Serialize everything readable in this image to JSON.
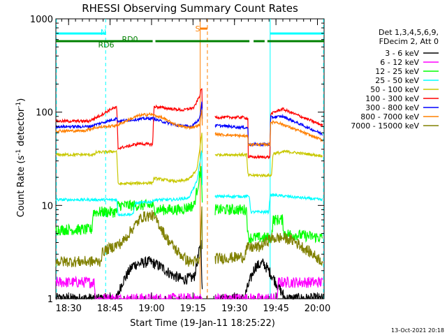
{
  "chart_data": {
    "type": "line",
    "title": "RHESSI Observing Summary Count Rates",
    "xlabel": "Start Time (19-Jan-11 18:25:22)",
    "ylabel_main": "Count Rate (s",
    "ylabel_exp1": "-1",
    "ylabel_mid": " detector",
    "ylabel_exp2": "-1",
    "ylabel_end": ")",
    "y_scale": "log",
    "ylim": [
      1,
      1000
    ],
    "xlim_minutes": [
      0,
      97
    ],
    "x_ticks": [
      {
        "value": 4.6,
        "label": "18:30"
      },
      {
        "value": 19.6,
        "label": "18:45"
      },
      {
        "value": 34.6,
        "label": "19:00"
      },
      {
        "value": 49.6,
        "label": "19:15"
      },
      {
        "value": 64.6,
        "label": "19:30"
      },
      {
        "value": 79.6,
        "label": "19:45"
      },
      {
        "value": 94.6,
        "label": "20:00"
      }
    ],
    "y_ticks": [
      {
        "value": 1,
        "label": "1"
      },
      {
        "value": 10,
        "label": "10"
      },
      {
        "value": 100,
        "label": "100"
      },
      {
        "value": 1000,
        "label": "1000"
      }
    ],
    "legend_header": [
      "Det 1,3,4,5,6,9,",
      "FDecim 2, Att 0"
    ],
    "legend_position": "right",
    "timestamp": "13-Oct-2021 20:18",
    "flags": [
      {
        "label": "N",
        "color": "#00ffff",
        "segments": [
          [
            0,
            18
          ],
          [
            77.5,
            97
          ]
        ]
      },
      {
        "label": "S",
        "color": "#ff8000",
        "segments": [
          [
            52.2,
            54.8
          ]
        ]
      },
      {
        "label": "RD0",
        "color": "#008000",
        "segments": [
          [
            0,
            35
          ],
          [
            36,
            70
          ],
          [
            71.5,
            75.5
          ],
          [
            76.5,
            97
          ]
        ]
      },
      {
        "label": "RD6",
        "color": "#008000",
        "segments": []
      }
    ],
    "vertical_lines": [
      {
        "x": 0.2,
        "color": "#00ffff",
        "style": "dashed"
      },
      {
        "x": 18,
        "color": "#00ffff",
        "style": "dashed"
      },
      {
        "x": 52.2,
        "color": "#ff8000",
        "style": "solid"
      },
      {
        "x": 54.8,
        "color": "#ff8000",
        "style": "dashed"
      },
      {
        "x": 77.5,
        "color": "#00ffff",
        "style": "solid"
      },
      {
        "x": 96.8,
        "color": "#00ffff",
        "style": "dashed"
      }
    ],
    "gap_minutes": [
      53,
      57.5
    ],
    "series": [
      {
        "name": "3 - 6 keV",
        "color": "#000000",
        "points": [
          [
            0,
            1
          ],
          [
            22,
            1
          ],
          [
            24,
            1.5
          ],
          [
            28,
            2.3
          ],
          [
            34,
            2.5
          ],
          [
            38,
            2.2
          ],
          [
            42,
            1.8
          ],
          [
            46,
            1.6
          ],
          [
            50,
            1.7
          ],
          [
            52.5,
            4
          ],
          [
            53,
            1
          ],
          [
            57.5,
            1
          ],
          [
            68,
            1
          ],
          [
            70,
            1.5
          ],
          [
            72,
            2.2
          ],
          [
            75,
            2.4
          ],
          [
            77,
            2.0
          ],
          [
            79,
            1.6
          ],
          [
            83,
            1
          ],
          [
            97,
            1
          ]
        ]
      },
      {
        "name": "6 - 12 keV",
        "color": "#ff00ff",
        "points": [
          [
            0,
            1.5
          ],
          [
            14,
            1.5
          ],
          [
            14.2,
            1
          ],
          [
            52.5,
            1
          ],
          [
            53,
            1
          ],
          [
            57.5,
            1
          ],
          [
            80,
            1
          ],
          [
            80.5,
            1.5
          ],
          [
            96.5,
            1.5
          ]
        ]
      },
      {
        "name": "12 - 25 keV",
        "color": "#00ff00",
        "points": [
          [
            0,
            5.5
          ],
          [
            13,
            5.5
          ],
          [
            13.5,
            8.5
          ],
          [
            22,
            8.5
          ],
          [
            22.5,
            10
          ],
          [
            35,
            10
          ],
          [
            35.5,
            9
          ],
          [
            45,
            9
          ],
          [
            50,
            10
          ],
          [
            52.5,
            25
          ],
          [
            53,
            9
          ],
          [
            57.5,
            9
          ],
          [
            69,
            9
          ],
          [
            69.5,
            4.5
          ],
          [
            78,
            4.5
          ],
          [
            78.5,
            7
          ],
          [
            82,
            7
          ],
          [
            82.5,
            5
          ],
          [
            96.5,
            4.5
          ]
        ]
      },
      {
        "name": "25 - 50 keV",
        "color": "#00ffff",
        "points": [
          [
            0,
            11.5
          ],
          [
            22,
            11.5
          ],
          [
            22.5,
            8
          ],
          [
            28,
            8
          ],
          [
            28.5,
            10.5
          ],
          [
            35,
            11
          ],
          [
            35.5,
            11.5
          ],
          [
            42,
            11.5
          ],
          [
            48,
            12
          ],
          [
            51,
            18
          ],
          [
            52.8,
            40
          ],
          [
            53,
            12
          ],
          [
            57.5,
            12.5
          ],
          [
            70,
            12.5
          ],
          [
            70.5,
            8.5
          ],
          [
            77,
            8.5
          ],
          [
            77.5,
            13
          ],
          [
            96.5,
            11.5
          ]
        ]
      },
      {
        "name": "50 - 100 keV",
        "color": "#c8c800",
        "points": [
          [
            0,
            35
          ],
          [
            14,
            35
          ],
          [
            14.5,
            37
          ],
          [
            22,
            38
          ],
          [
            22.5,
            17
          ],
          [
            35,
            17.5
          ],
          [
            35.5,
            19.5
          ],
          [
            44,
            18
          ],
          [
            48,
            19
          ],
          [
            51,
            24
          ],
          [
            52.8,
            60
          ],
          [
            53,
            31
          ],
          [
            57.5,
            35
          ],
          [
            69,
            35
          ],
          [
            69.5,
            21
          ],
          [
            78,
            21
          ],
          [
            78.5,
            36
          ],
          [
            82,
            37
          ],
          [
            82.5,
            38
          ],
          [
            96.5,
            34
          ]
        ]
      },
      {
        "name": "100 - 300 keV",
        "color": "#ff0000",
        "points": [
          [
            0,
            80
          ],
          [
            12,
            80
          ],
          [
            16,
            92
          ],
          [
            20,
            108
          ],
          [
            22,
            112
          ],
          [
            22.5,
            41
          ],
          [
            26,
            43
          ],
          [
            30,
            46
          ],
          [
            35,
            45
          ],
          [
            35.5,
            115
          ],
          [
            40,
            110
          ],
          [
            46,
            105
          ],
          [
            50,
            112
          ],
          [
            52,
            150
          ],
          [
            52.8,
            185
          ],
          [
            53,
            90
          ],
          [
            57.5,
            88
          ],
          [
            68,
            88
          ],
          [
            69.5,
            85
          ],
          [
            69.6,
            33
          ],
          [
            77.5,
            33
          ],
          [
            77.6,
            95
          ],
          [
            80,
            103
          ],
          [
            82,
            108
          ],
          [
            96.5,
            72
          ]
        ]
      },
      {
        "name": "300 - 800 keV",
        "color": "#0000ff",
        "points": [
          [
            0,
            70
          ],
          [
            12,
            70
          ],
          [
            16,
            76
          ],
          [
            20,
            82
          ],
          [
            22,
            86
          ],
          [
            22.5,
            80
          ],
          [
            28,
            83
          ],
          [
            32,
            85
          ],
          [
            35,
            86
          ],
          [
            38,
            80
          ],
          [
            44,
            72
          ],
          [
            49,
            70
          ],
          [
            52,
            85
          ],
          [
            52.8,
            130
          ],
          [
            53,
            75
          ],
          [
            57.5,
            72
          ],
          [
            69.5,
            68
          ],
          [
            69.6,
            45
          ],
          [
            77.5,
            45
          ],
          [
            77.6,
            88
          ],
          [
            82,
            90
          ],
          [
            96.5,
            58
          ]
        ]
      },
      {
        "name": "800 - 7000 keV",
        "color": "#ff8000",
        "points": [
          [
            0,
            63
          ],
          [
            10,
            63
          ],
          [
            14,
            68
          ],
          [
            18,
            70
          ],
          [
            22,
            72
          ],
          [
            26,
            82
          ],
          [
            30,
            92
          ],
          [
            34,
            95
          ],
          [
            38,
            88
          ],
          [
            44,
            72
          ],
          [
            48,
            68
          ],
          [
            52,
            72
          ],
          [
            52.8,
            110
          ],
          [
            53,
            60
          ],
          [
            57.5,
            58
          ],
          [
            69.5,
            55
          ],
          [
            69.6,
            45
          ],
          [
            77.5,
            45
          ],
          [
            77.6,
            78
          ],
          [
            80,
            78
          ],
          [
            96.5,
            50
          ]
        ]
      },
      {
        "name": "7000 - 15000 keV",
        "color": "#808000",
        "points": [
          [
            0,
            2.5
          ],
          [
            16,
            2.5
          ],
          [
            17,
            3.2
          ],
          [
            24,
            4.0
          ],
          [
            28,
            5.8
          ],
          [
            31,
            7.5
          ],
          [
            35,
            7.8
          ],
          [
            37,
            6.5
          ],
          [
            40,
            4.5
          ],
          [
            44,
            3.2
          ],
          [
            48,
            2.5
          ],
          [
            52,
            2.5
          ],
          [
            52.8,
            9
          ],
          [
            53,
            2.6
          ],
          [
            57.5,
            2.7
          ],
          [
            68,
            2.8
          ],
          [
            69,
            3.5
          ],
          [
            74,
            3.6
          ],
          [
            77.5,
            4.4
          ],
          [
            82,
            4.5
          ],
          [
            86,
            4.2
          ],
          [
            96.5,
            2.5
          ]
        ]
      }
    ]
  }
}
